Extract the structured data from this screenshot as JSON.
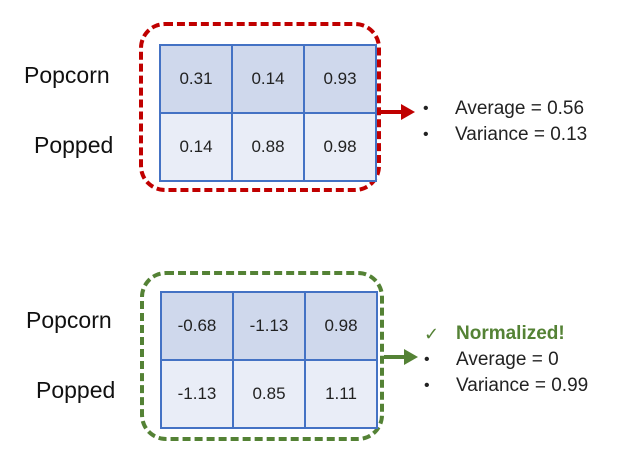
{
  "colors": {
    "top_border": "#c00000",
    "bottom_border": "#548235",
    "cell_border": "#4472c4",
    "row0_fill": "#cfd8ec",
    "row1_fill": "#e9edf7",
    "normalized_text": "#548235"
  },
  "top": {
    "row_labels": [
      "Popcorn",
      "Popped"
    ],
    "matrix": [
      [
        "0.31",
        "0.14",
        "0.93"
      ],
      [
        "0.14",
        "0.88",
        "0.98"
      ]
    ],
    "stats": [
      "Average = 0.56",
      "Variance = 0.13"
    ]
  },
  "bottom": {
    "row_labels": [
      "Popcorn",
      "Popped"
    ],
    "matrix": [
      [
        "-0.68",
        "-1.13",
        "0.98"
      ],
      [
        "-1.13",
        "0.85",
        "1.11"
      ]
    ],
    "status": "Normalized!",
    "stats": [
      "Average = 0",
      "Variance = 0.99"
    ]
  }
}
